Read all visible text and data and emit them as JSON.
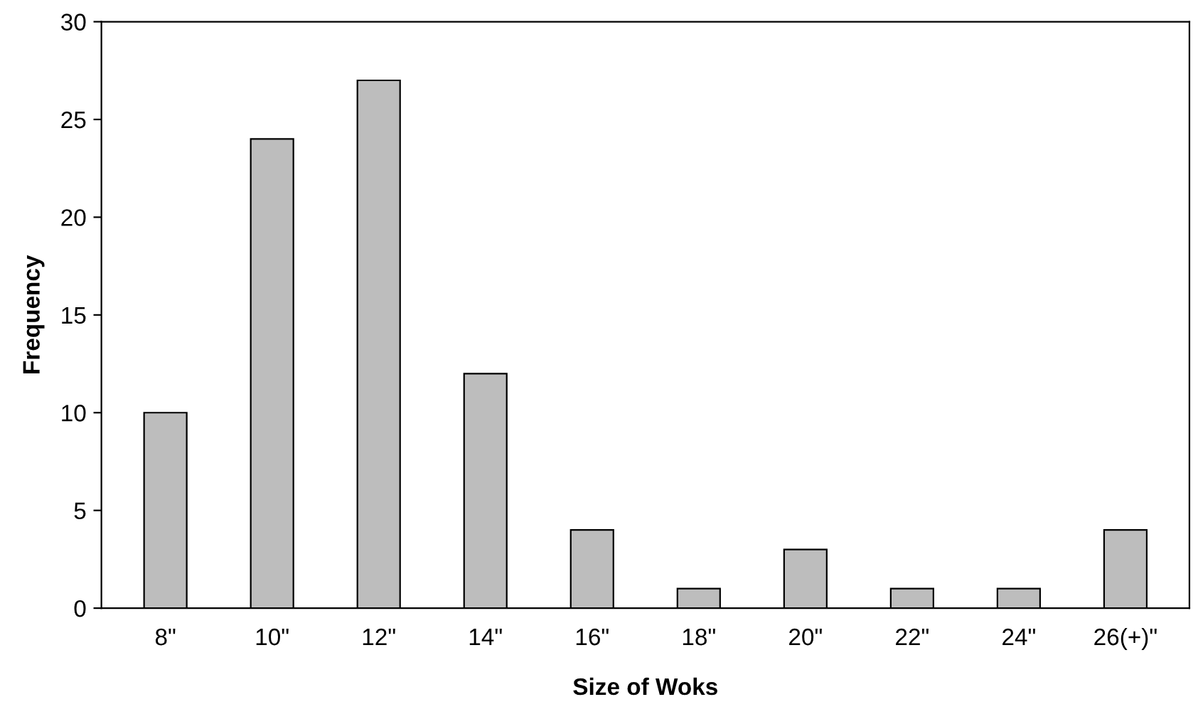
{
  "chart_data": {
    "type": "bar",
    "xlabel": "Size of Woks",
    "ylabel": "Frequency",
    "categories": [
      "8\"",
      "10\"",
      "12\"",
      "14\"",
      "16\"",
      "18\"",
      "20\"",
      "22\"",
      "24\"",
      "26(+)\""
    ],
    "values": [
      10,
      24,
      27,
      12,
      4,
      1,
      3,
      1,
      1,
      4
    ],
    "color": "#bdbdbd",
    "ylim": [
      0,
      30
    ],
    "yticks": [
      0,
      5,
      10,
      15,
      20,
      25,
      30
    ],
    "grid": false
  }
}
